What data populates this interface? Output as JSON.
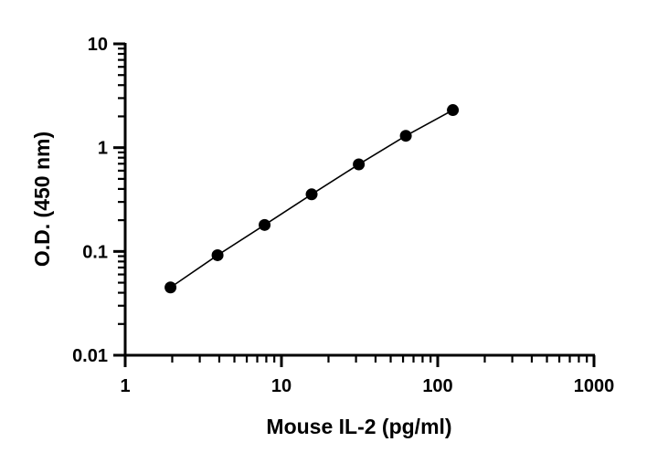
{
  "chart_data": {
    "type": "scatter",
    "title": "",
    "xlabel": "Mouse IL-2 (pg/ml)",
    "ylabel": "O.D. (450 nm)",
    "xscale": "log",
    "yscale": "log",
    "xlim": [
      1,
      1000
    ],
    "ylim": [
      0.01,
      10
    ],
    "xticks": [
      "1",
      "10",
      "100",
      "1000"
    ],
    "yticks": [
      "0.01",
      "0.1",
      "1",
      "10"
    ],
    "grid": false,
    "legend": "none",
    "marker_color": "#000000",
    "line_color": "#000000",
    "series": [
      {
        "x": [
          1.95,
          3.9,
          7.8,
          15.6,
          31.25,
          62.5,
          125
        ],
        "y": [
          0.045,
          0.092,
          0.18,
          0.355,
          0.69,
          1.3,
          2.3
        ]
      }
    ]
  }
}
